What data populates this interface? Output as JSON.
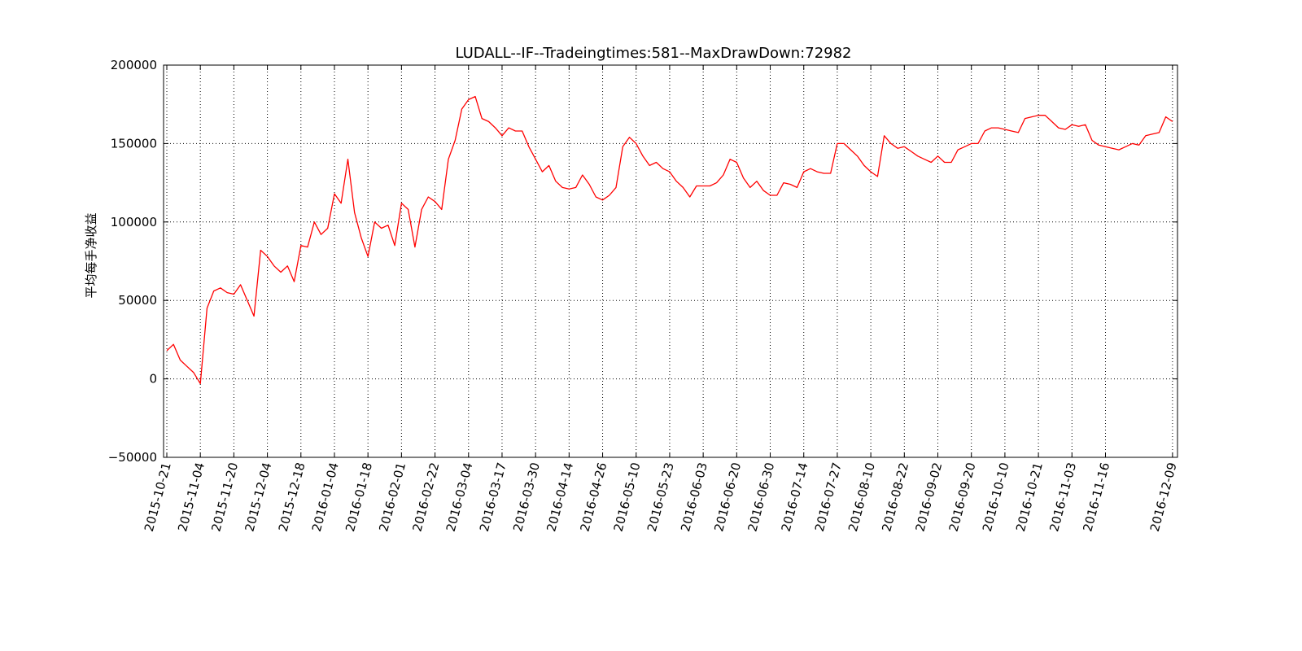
{
  "chart_data": {
    "type": "line",
    "title": "LUDALL--IF--Tradeingtimes:581--MaxDrawDown:72982",
    "xlabel": "",
    "ylabel": "平均每手净收益",
    "ylim": [
      -50000,
      200000
    ],
    "yticks": [
      200000,
      150000,
      100000,
      50000,
      0,
      -50000
    ],
    "ytick_labels": [
      "200000",
      "150000",
      "100000",
      "50000",
      "0",
      "−50000"
    ],
    "xticks": [
      {
        "i": 0,
        "label": "2015-10-21"
      },
      {
        "i": 10,
        "label": "2015-11-04"
      },
      {
        "i": 20,
        "label": "2015-11-20"
      },
      {
        "i": 30,
        "label": "2015-12-04"
      },
      {
        "i": 40,
        "label": "2015-12-18"
      },
      {
        "i": 50,
        "label": "2016-01-04"
      },
      {
        "i": 60,
        "label": "2016-01-18"
      },
      {
        "i": 70,
        "label": "2016-02-01"
      },
      {
        "i": 80,
        "label": "2016-02-22"
      },
      {
        "i": 90,
        "label": "2016-03-04"
      },
      {
        "i": 100,
        "label": "2016-03-17"
      },
      {
        "i": 110,
        "label": "2016-03-30"
      },
      {
        "i": 120,
        "label": "2016-04-14"
      },
      {
        "i": 130,
        "label": "2016-04-26"
      },
      {
        "i": 140,
        "label": "2016-05-10"
      },
      {
        "i": 150,
        "label": "2016-05-23"
      },
      {
        "i": 160,
        "label": "2016-06-03"
      },
      {
        "i": 170,
        "label": "2016-06-20"
      },
      {
        "i": 180,
        "label": "2016-06-30"
      },
      {
        "i": 190,
        "label": "2016-07-14"
      },
      {
        "i": 200,
        "label": "2016-07-27"
      },
      {
        "i": 210,
        "label": "2016-08-10"
      },
      {
        "i": 220,
        "label": "2016-08-22"
      },
      {
        "i": 230,
        "label": "2016-09-02"
      },
      {
        "i": 240,
        "label": "2016-09-20"
      },
      {
        "i": 250,
        "label": "2016-10-10"
      },
      {
        "i": 260,
        "label": "2016-10-21"
      },
      {
        "i": 270,
        "label": "2016-11-03"
      },
      {
        "i": 280,
        "label": "2016-11-16"
      },
      {
        "i": 300,
        "label": "2016-12-09"
      }
    ],
    "grid": true,
    "series": [
      {
        "color": "#ff0000",
        "x": [
          0,
          2,
          4,
          6,
          8,
          10,
          12,
          14,
          16,
          18,
          20,
          22,
          24,
          26,
          28,
          30,
          32,
          34,
          36,
          38,
          40,
          42,
          44,
          46,
          48,
          50,
          52,
          54,
          56,
          58,
          60,
          62,
          64,
          66,
          68,
          70,
          72,
          74,
          76,
          78,
          80,
          82,
          84,
          86,
          88,
          90,
          92,
          94,
          96,
          98,
          100,
          102,
          104,
          106,
          108,
          110,
          112,
          114,
          116,
          118,
          120,
          122,
          124,
          126,
          128,
          130,
          132,
          134,
          136,
          138,
          140,
          142,
          144,
          146,
          148,
          150,
          152,
          154,
          156,
          158,
          160,
          162,
          164,
          166,
          168,
          170,
          172,
          174,
          176,
          178,
          180,
          182,
          184,
          186,
          188,
          190,
          192,
          194,
          196,
          198,
          200,
          202,
          204,
          206,
          208,
          210,
          212,
          214,
          216,
          218,
          220,
          222,
          224,
          226,
          228,
          230,
          232,
          234,
          236,
          238,
          240,
          242,
          244,
          246,
          248,
          250,
          252,
          254,
          256,
          258,
          260,
          262,
          264,
          266,
          268,
          270,
          272,
          274,
          276,
          278,
          280,
          282,
          284,
          286,
          288,
          290,
          292,
          294,
          296,
          298,
          300
        ],
        "y": [
          18000,
          22000,
          12000,
          8000,
          4000,
          -3000,
          45000,
          56000,
          58000,
          55000,
          54000,
          60000,
          50000,
          40000,
          82000,
          78000,
          72000,
          68000,
          72000,
          62000,
          85000,
          84000,
          100000,
          92000,
          96000,
          118000,
          112000,
          140000,
          106000,
          90000,
          78000,
          100000,
          96000,
          98000,
          85000,
          112000,
          108000,
          84000,
          108000,
          116000,
          113000,
          108000,
          140000,
          152000,
          172000,
          178000,
          180000,
          166000,
          164000,
          160000,
          155000,
          160000,
          158000,
          158000,
          148000,
          140000,
          132000,
          136000,
          126000,
          122000,
          121000,
          122000,
          130000,
          124000,
          116000,
          114000,
          117000,
          122000,
          148000,
          154000,
          150000,
          142000,
          136000,
          138000,
          134000,
          132000,
          126000,
          122000,
          116000,
          123000,
          123000,
          123000,
          125000,
          130000,
          140000,
          138000,
          128000,
          122000,
          126000,
          120000,
          117000,
          117000,
          125000,
          124000,
          122000,
          132000,
          134000,
          132000,
          131000,
          131000,
          150000,
          150000,
          146000,
          142000,
          136000,
          132000,
          129000,
          155000,
          150000,
          147000,
          148000,
          145000,
          142000,
          140000,
          138000,
          142000,
          138000,
          138000,
          146000,
          148000,
          150000,
          150000,
          158000,
          160000,
          160000,
          159000,
          158000,
          157000,
          166000,
          167000,
          168000,
          168000,
          164000,
          160000,
          159000,
          162000,
          161000,
          162000,
          152000,
          149000,
          148000,
          147000,
          146000,
          148000,
          150000,
          149000,
          155000,
          156000,
          157000,
          167000,
          164000
        ]
      }
    ]
  }
}
